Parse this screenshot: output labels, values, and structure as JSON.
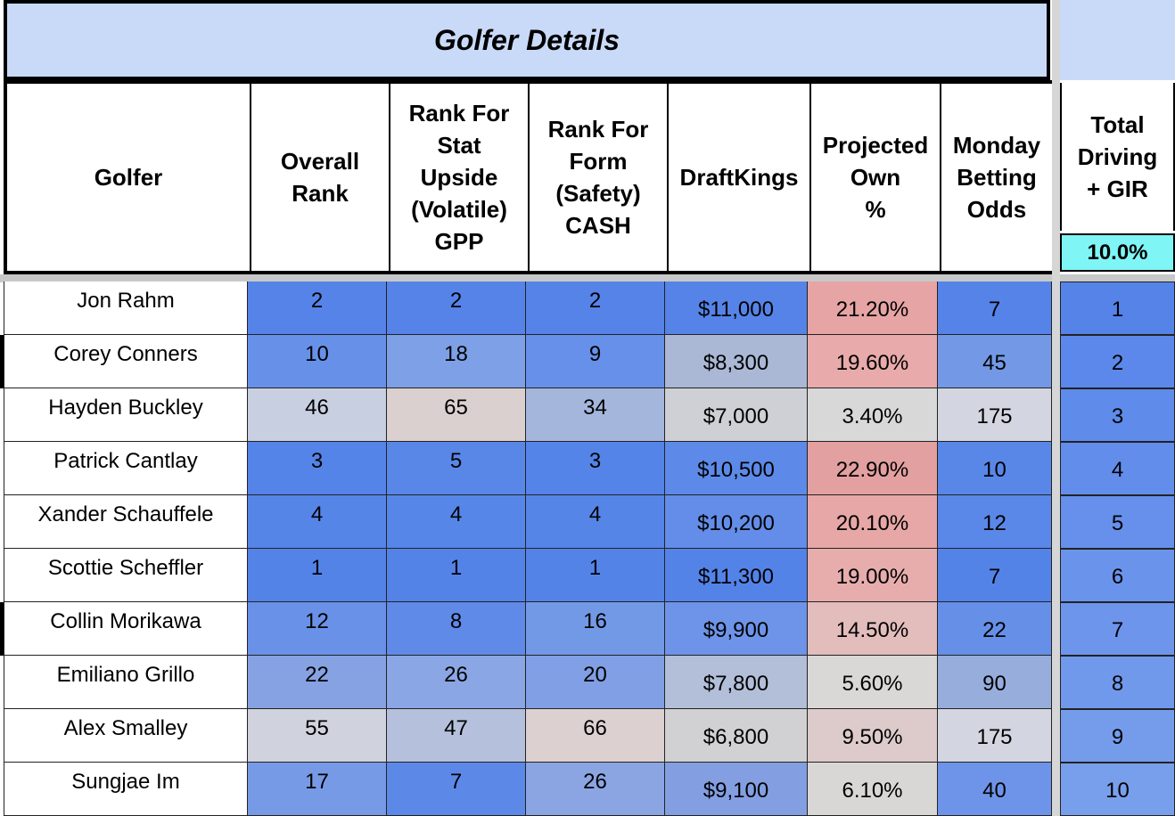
{
  "title": "Golfer Details",
  "headers": {
    "golfer": "Golfer",
    "overall_rank": "Overall\nRank",
    "rank_stat": "Rank For\nStat\nUpside\n(Volatile)\nGPP",
    "rank_form": "Rank For\nForm\n(Safety)\nCASH",
    "draftkings": "DraftKings",
    "projected_own": "Projected\nOwn\n%",
    "monday_odds": "Monday\nBetting\nOdds",
    "total_driving": "Total\nDriving\n+ GIR",
    "total_driving_weight": "10.0%"
  },
  "rows": [
    {
      "golfer": "Jon Rahm",
      "overall": "2",
      "stat": "2",
      "form": "2",
      "dk": "$11,000",
      "own": "21.20%",
      "odds": "7",
      "tdg": "1",
      "colors": {
        "overall": "#5583e8",
        "stat": "#5583e8",
        "form": "#5583e8",
        "dk": "#5583e8",
        "own": "#e6a4a4",
        "odds": "#5583e8",
        "tdg": "#5583e8"
      }
    },
    {
      "golfer": "Corey Conners",
      "overall": "10",
      "stat": "18",
      "form": "9",
      "dk": "$8,300",
      "own": "19.60%",
      "odds": "45",
      "tdg": "2",
      "colors": {
        "overall": "#6791e9",
        "stat": "#7da0e6",
        "form": "#6690ea",
        "dk": "#aab8d6",
        "own": "#e8aaaa",
        "odds": "#7399e6",
        "tdg": "#5b88ea"
      }
    },
    {
      "golfer": "Hayden Buckley",
      "overall": "46",
      "stat": "65",
      "form": "34",
      "dk": "$7,000",
      "own": "3.40%",
      "odds": "175",
      "tdg": "3",
      "colors": {
        "overall": "#c8cfe0",
        "stat": "#dbd0d0",
        "form": "#a5b6dc",
        "dk": "#cfd0d6",
        "own": "#d8d8d8",
        "odds": "#d3d6e0",
        "tdg": "#5f8bea"
      }
    },
    {
      "golfer": "Patrick Cantlay",
      "overall": "3",
      "stat": "5",
      "form": "3",
      "dk": "$10,500",
      "own": "22.90%",
      "odds": "10",
      "tdg": "4",
      "colors": {
        "overall": "#5584e8",
        "stat": "#5887e8",
        "form": "#5584e8",
        "dk": "#5d8ae8",
        "own": "#e3a0a0",
        "odds": "#5887e8",
        "tdg": "#628deb"
      }
    },
    {
      "golfer": "Xander Schauffele",
      "overall": "4",
      "stat": "4",
      "form": "4",
      "dk": "$10,200",
      "own": "20.10%",
      "odds": "12",
      "tdg": "5",
      "colors": {
        "overall": "#5685e8",
        "stat": "#5686e8",
        "form": "#5685e8",
        "dk": "#638de8",
        "own": "#e7a7a7",
        "odds": "#5a88e8",
        "tdg": "#6690eb"
      }
    },
    {
      "golfer": "Scottie Scheffler",
      "overall": "1",
      "stat": "1",
      "form": "1",
      "dk": "$11,300",
      "own": "19.00%",
      "odds": "7",
      "tdg": "6",
      "colors": {
        "overall": "#5483e8",
        "stat": "#5483e8",
        "form": "#5483e8",
        "dk": "#5483e8",
        "own": "#e7adad",
        "odds": "#5483e8",
        "tdg": "#6a93eb"
      }
    },
    {
      "golfer": "Collin Morikawa",
      "overall": "12",
      "stat": "8",
      "form": "16",
      "dk": "$9,900",
      "own": "14.50%",
      "odds": "22",
      "tdg": "7",
      "colors": {
        "overall": "#6991e8",
        "stat": "#5f8ae8",
        "form": "#7299e6",
        "dk": "#6d94e8",
        "own": "#e3bcbc",
        "odds": "#6690e8",
        "tdg": "#6d95eb"
      }
    },
    {
      "golfer": "Emiliano Grillo",
      "overall": "22",
      "stat": "26",
      "form": "20",
      "dk": "$7,800",
      "own": "5.60%",
      "odds": "90",
      "tdg": "8",
      "colors": {
        "overall": "#86a2e2",
        "stat": "#8aa6e4",
        "form": "#809fe4",
        "dk": "#b3bfd8",
        "own": "#dad7d7",
        "odds": "#97addc",
        "tdg": "#7199eb"
      }
    },
    {
      "golfer": "Alex Smalley",
      "overall": "55",
      "stat": "47",
      "form": "66",
      "dk": "$6,800",
      "own": "9.50%",
      "odds": "175",
      "tdg": "9",
      "colors": {
        "overall": "#d0d3dd",
        "stat": "#b5c0dc",
        "form": "#ddd0d0",
        "dk": "#d1d1d4",
        "own": "#ddcaca",
        "odds": "#d3d6e0",
        "tdg": "#759ceb"
      }
    },
    {
      "golfer": "Sungjae Im",
      "overall": "17",
      "stat": "7",
      "form": "26",
      "dk": "$9,100",
      "own": "6.10%",
      "odds": "40",
      "tdg": "10",
      "colors": {
        "overall": "#779ae6",
        "stat": "#5c89e8",
        "form": "#8aa5e2",
        "dk": "#839fe2",
        "own": "#d9d6d6",
        "odds": "#6d94e8",
        "tdg": "#789feb"
      }
    }
  ]
}
